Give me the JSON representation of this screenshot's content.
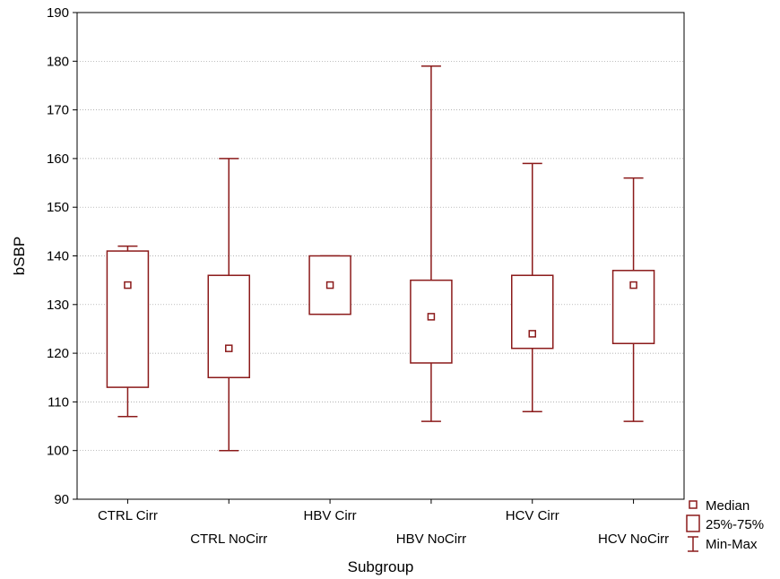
{
  "chart_data": {
    "type": "box",
    "xlabel": "Subgroup",
    "ylabel": "bSBP",
    "ylim": [
      90,
      190
    ],
    "yticks": [
      90,
      100,
      110,
      120,
      130,
      140,
      150,
      160,
      170,
      180,
      190
    ],
    "grid": "horizontal-dotted",
    "categories": [
      "CTRL Cirr",
      "CTRL NoCirr",
      "HBV Cirr",
      "HBV NoCirr",
      "HCV Cirr",
      "HCV NoCirr"
    ],
    "series": [
      {
        "category": "CTRL Cirr",
        "min": 107,
        "q1": 113,
        "median": 134,
        "q3": 141,
        "max": 142
      },
      {
        "category": "CTRL NoCirr",
        "min": 100,
        "q1": 115,
        "median": 121,
        "q3": 136,
        "max": 160
      },
      {
        "category": "HBV Cirr",
        "min": 128,
        "q1": 128,
        "median": 134,
        "q3": 140,
        "max": 140
      },
      {
        "category": "HBV NoCirr",
        "min": 106,
        "q1": 118,
        "median": 127.5,
        "q3": 135,
        "max": 179
      },
      {
        "category": "HCV Cirr",
        "min": 108,
        "q1": 121,
        "median": 124,
        "q3": 136,
        "max": 159
      },
      {
        "category": "HCV NoCirr",
        "min": 106,
        "q1": 122,
        "median": 134,
        "q3": 137,
        "max": 156
      }
    ],
    "legend": {
      "placement": "bottom-right",
      "items": [
        "Median",
        "25%-75%",
        "Min-Max"
      ]
    },
    "color": "#8b1a1a"
  }
}
